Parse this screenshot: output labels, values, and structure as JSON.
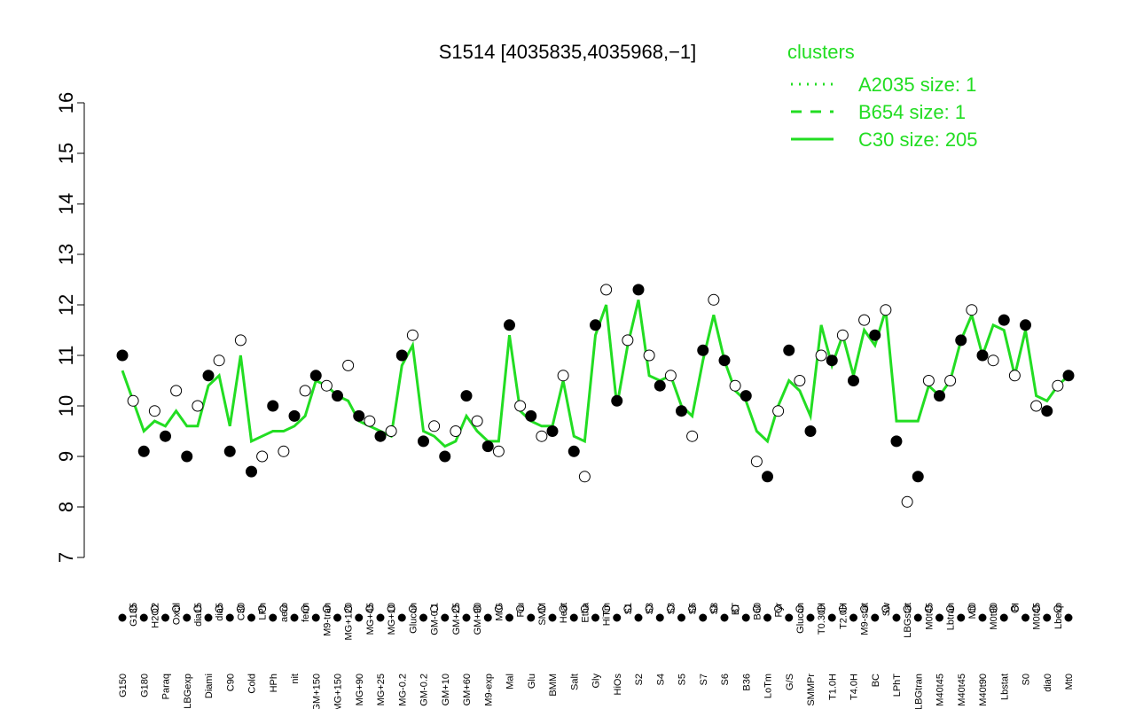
{
  "chart_data": {
    "type": "line",
    "title": "S1514 [4035835,4035968,−1]",
    "legend_title": "clusters",
    "legend_position": "top-right",
    "categories": [
      "G150",
      "G135",
      "G180",
      "H2O2",
      "Paraq",
      "Oxctl",
      "LBGexp",
      "dia15",
      "Diami",
      "dia5",
      "C90",
      "C30",
      "Cold",
      "LPh",
      "HPh",
      "aero",
      "nit",
      "ferm",
      "GM+150",
      "M9-tran",
      "MG+150",
      "MG+120",
      "MG+90",
      "MG+45",
      "MG+25",
      "MG+10",
      "MG-0.2",
      "Glucon",
      "GM-0.2",
      "GM-0.1",
      "GM+10",
      "GM+25",
      "GM+60",
      "GM+90",
      "M9-exp",
      "M/G",
      "Mal",
      "Fru",
      "Glu",
      "SMM",
      "BMM",
      "Heat",
      "Salt",
      "Etha",
      "Gly",
      "HiTm",
      "HiOs",
      "S1",
      "S2",
      "S3",
      "S4",
      "S3",
      "S5",
      "S6",
      "S7",
      "S8",
      "S6",
      "BT",
      "B36",
      "B60",
      "LoTm",
      "Pyr",
      "G/S",
      "Glucon",
      "SMMPr",
      "T0.30H",
      "T1.0H",
      "T2.0H",
      "T4.0H",
      "M9-stat",
      "BC",
      "Sw",
      "LPhT",
      "LBGstat",
      "LBGtran",
      "M0t45",
      "M40t45",
      "Lbtran",
      "M40t45",
      "Mt0",
      "M40t90",
      "M0t90",
      "Lbstat",
      "BI",
      "S0",
      "M0t45",
      "dia0",
      "Lbexp",
      "Mt0"
    ],
    "points": {
      "color": "#000000",
      "values": [
        11.0,
        10.1,
        9.1,
        9.9,
        9.4,
        10.3,
        9.0,
        10.0,
        10.6,
        10.9,
        9.1,
        11.3,
        8.7,
        9.0,
        10.0,
        9.1,
        9.8,
        10.3,
        10.6,
        10.4,
        10.2,
        10.8,
        9.8,
        9.7,
        9.4,
        9.5,
        11.0,
        11.4,
        9.3,
        9.6,
        9.0,
        9.5,
        10.2,
        9.7,
        9.2,
        9.1,
        11.6,
        10.0,
        9.8,
        9.4,
        9.5,
        10.6,
        9.1,
        8.6,
        11.6,
        12.3,
        10.1,
        11.3,
        12.3,
        11.0,
        10.4,
        10.6,
        9.9,
        9.4,
        11.1,
        12.1,
        10.9,
        10.4,
        10.2,
        8.9,
        8.6,
        9.9,
        11.1,
        10.5,
        9.5,
        11.0,
        10.9,
        11.4,
        10.5,
        11.7,
        11.4,
        11.9,
        9.3,
        8.1,
        8.6,
        10.5,
        10.2,
        10.5,
        11.3,
        11.9,
        11.0,
        10.9,
        11.7,
        10.6,
        11.6,
        10.0,
        9.9,
        10.4,
        10.6
      ]
    },
    "series": [
      {
        "name": "A2035 size: 1",
        "color": "#22dd22",
        "style": "dotted",
        "values": null
      },
      {
        "name": "B654 size: 1",
        "color": "#22dd22",
        "style": "dashed",
        "values": null
      },
      {
        "name": "C30 size: 205",
        "color": "#22dd22",
        "style": "solid",
        "values": [
          10.7,
          10.1,
          9.5,
          9.7,
          9.6,
          9.9,
          9.6,
          9.6,
          10.4,
          10.6,
          9.6,
          11.0,
          9.3,
          9.4,
          9.5,
          9.5,
          9.6,
          9.8,
          10.5,
          10.4,
          10.2,
          10.1,
          9.7,
          9.6,
          9.5,
          9.4,
          10.8,
          11.2,
          9.5,
          9.4,
          9.2,
          9.3,
          9.8,
          9.5,
          9.3,
          9.3,
          11.4,
          9.9,
          9.7,
          9.6,
          9.6,
          10.5,
          9.4,
          9.3,
          11.4,
          12.0,
          10.0,
          11.2,
          12.1,
          10.6,
          10.5,
          10.6,
          10.0,
          9.8,
          10.9,
          11.8,
          10.9,
          10.3,
          10.1,
          9.5,
          9.3,
          10.0,
          10.5,
          10.3,
          9.8,
          11.6,
          10.8,
          11.4,
          10.6,
          11.5,
          11.2,
          11.9,
          9.7,
          9.7,
          9.7,
          10.4,
          10.2,
          10.5,
          11.3,
          11.8,
          11.0,
          11.6,
          11.5,
          10.6,
          11.5,
          10.2,
          10.1,
          10.4,
          10.6
        ]
      }
    ],
    "ylim": [
      7,
      16
    ],
    "yticks": [
      7,
      8,
      9,
      10,
      11,
      12,
      13,
      14,
      15,
      16
    ]
  }
}
